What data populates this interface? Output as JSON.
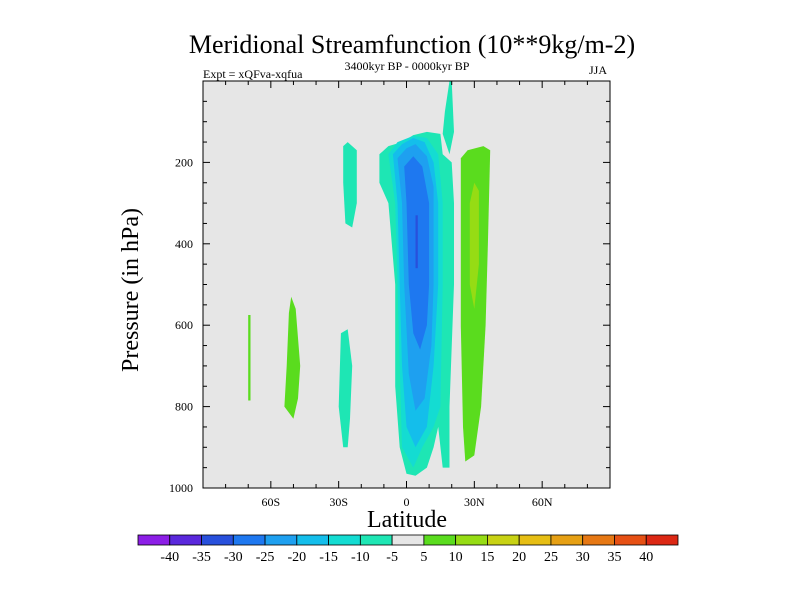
{
  "chart_data": {
    "type": "heatmap",
    "title": "Meridional Streamfunction (10**9kg/m-2)",
    "left_string": "Expt = xQFva-xqfua",
    "center_string": "3400kyr BP - 0000kyr BP",
    "right_string": "JJA",
    "xlabel": "Latitude",
    "ylabel": "Pressure (in hPa)",
    "xlim": [
      -90,
      90
    ],
    "ylim": [
      1000,
      0
    ],
    "x_ticks": [
      -60,
      -30,
      0,
      30,
      60
    ],
    "x_tick_labels": [
      "60S",
      "30S",
      "0",
      "30N",
      "60N"
    ],
    "y_ticks": [
      200,
      400,
      600,
      800,
      1000
    ],
    "y_tick_labels": [
      "200",
      "400",
      "600",
      "800",
      "1000"
    ],
    "colorbar": {
      "levels": [
        -40,
        -35,
        -30,
        -25,
        -20,
        -15,
        -10,
        -5,
        5,
        10,
        15,
        20,
        25,
        30,
        35,
        40
      ],
      "level_labels": [
        "-40",
        "-35",
        "-30",
        "-25",
        "-20",
        "-15",
        "-10",
        "-5",
        "5",
        "10",
        "15",
        "20",
        "25",
        "30",
        "35",
        "40"
      ],
      "colors": [
        "#8c1ee6",
        "#5a28dc",
        "#2850dc",
        "#1e78f0",
        "#1ea0f0",
        "#14beeb",
        "#14dcd2",
        "#1ee6b4",
        "#e6e6e6",
        "#5adc1e",
        "#96dc14",
        "#c8d214",
        "#e6be14",
        "#e6a014",
        "#e67814",
        "#e65014",
        "#dc2814"
      ]
    },
    "background_color": "#e6e6e6",
    "contours": [
      {
        "name": "neg-5-equatorial-cell",
        "value": -5,
        "color": "#1ee6b4",
        "points": [
          [
            -12,
            180
          ],
          [
            -8,
            160
          ],
          [
            -2,
            150
          ],
          [
            3,
            133
          ],
          [
            9,
            125
          ],
          [
            15,
            130
          ],
          [
            16,
            180
          ],
          [
            20,
            200
          ],
          [
            21,
            300
          ],
          [
            21,
            500
          ],
          [
            19,
            800
          ],
          [
            19,
            950
          ],
          [
            16,
            950
          ],
          [
            14,
            850
          ],
          [
            12,
            900
          ],
          [
            9,
            950
          ],
          [
            4,
            970
          ],
          [
            0,
            965
          ],
          [
            -3,
            900
          ],
          [
            -5,
            750
          ],
          [
            -5,
            500
          ],
          [
            -8,
            300
          ],
          [
            -12,
            250
          ]
        ]
      },
      {
        "name": "neg-5-upper-plume",
        "value": -5,
        "color": "#1ee6b4",
        "points": [
          [
            16,
            130
          ],
          [
            17,
            75
          ],
          [
            19,
            0
          ],
          [
            20,
            0
          ],
          [
            21,
            125
          ],
          [
            19,
            180
          ]
        ]
      },
      {
        "name": "neg-10-core",
        "value": -10,
        "color": "#14dcd2",
        "points": [
          [
            -8,
            180
          ],
          [
            -4,
            150
          ],
          [
            3,
            135
          ],
          [
            9,
            140
          ],
          [
            14,
            180
          ],
          [
            16,
            300
          ],
          [
            16,
            500
          ],
          [
            15,
            800
          ],
          [
            12,
            850
          ],
          [
            7,
            900
          ],
          [
            3,
            950
          ],
          [
            -2,
            900
          ],
          [
            -3,
            700
          ],
          [
            -4,
            500
          ],
          [
            -5,
            300
          ]
        ]
      },
      {
        "name": "neg-15-core",
        "value": -15,
        "color": "#14beeb",
        "points": [
          [
            -6,
            180
          ],
          [
            -2,
            155
          ],
          [
            3,
            140
          ],
          [
            8,
            150
          ],
          [
            12,
            200
          ],
          [
            14,
            300
          ],
          [
            14,
            500
          ],
          [
            12,
            700
          ],
          [
            9,
            850
          ],
          [
            4,
            900
          ],
          [
            0,
            850
          ],
          [
            -2,
            700
          ],
          [
            -3,
            500
          ],
          [
            -4,
            300
          ]
        ]
      },
      {
        "name": "neg-20-core",
        "value": -20,
        "color": "#1ea0f0",
        "points": [
          [
            -4,
            190
          ],
          [
            0,
            165
          ],
          [
            4,
            155
          ],
          [
            9,
            185
          ],
          [
            12,
            260
          ],
          [
            12,
            500
          ],
          [
            11,
            650
          ],
          [
            8,
            780
          ],
          [
            4,
            810
          ],
          [
            1,
            720
          ],
          [
            -1,
            500
          ],
          [
            -2,
            300
          ]
        ]
      },
      {
        "name": "neg-25-core",
        "value": -25,
        "color": "#1e78f0",
        "points": [
          [
            -1,
            210
          ],
          [
            3,
            185
          ],
          [
            7,
            210
          ],
          [
            10,
            300
          ],
          [
            10,
            500
          ],
          [
            9,
            600
          ],
          [
            6,
            660
          ],
          [
            3,
            620
          ],
          [
            1,
            500
          ],
          [
            0,
            300
          ]
        ]
      },
      {
        "name": "neg-30-core",
        "value": -30,
        "color": "#2850dc",
        "points": [
          [
            4,
            330
          ],
          [
            5,
            330
          ],
          [
            5,
            460
          ],
          [
            4,
            460
          ]
        ]
      },
      {
        "name": "neg-5-subtropical-upper",
        "value": -5,
        "color": "#1ee6b4",
        "points": [
          [
            -28,
            160
          ],
          [
            -26,
            150
          ],
          [
            -22,
            170
          ],
          [
            -22,
            300
          ],
          [
            -24,
            360
          ],
          [
            -27,
            350
          ],
          [
            -28,
            250
          ]
        ]
      },
      {
        "name": "neg-5-subtropical-lower",
        "value": -5,
        "color": "#1ee6b4",
        "points": [
          [
            -29,
            620
          ],
          [
            -26,
            610
          ],
          [
            -24,
            700
          ],
          [
            -25,
            830
          ],
          [
            -26,
            900
          ],
          [
            -28,
            900
          ],
          [
            -30,
            800
          ]
        ]
      },
      {
        "name": "pos-5-north-cell",
        "value": 5,
        "color": "#5adc1e",
        "points": [
          [
            24,
            190
          ],
          [
            27,
            170
          ],
          [
            34,
            160
          ],
          [
            37,
            170
          ],
          [
            36,
            400
          ],
          [
            35,
            600
          ],
          [
            33,
            800
          ],
          [
            30,
            920
          ],
          [
            26,
            935
          ],
          [
            25,
            850
          ],
          [
            24,
            600
          ],
          [
            24,
            300
          ]
        ]
      },
      {
        "name": "pos-10-north-core",
        "value": 10,
        "color": "#96dc14",
        "points": [
          [
            28,
            300
          ],
          [
            30,
            250
          ],
          [
            32,
            270
          ],
          [
            32,
            450
          ],
          [
            30,
            560
          ],
          [
            28,
            500
          ]
        ]
      },
      {
        "name": "pos-5-south-cell",
        "value": 5,
        "color": "#5adc1e",
        "points": [
          [
            -52,
            570
          ],
          [
            -51,
            530
          ],
          [
            -49,
            560
          ],
          [
            -47,
            700
          ],
          [
            -48,
            780
          ],
          [
            -50,
            830
          ],
          [
            -54,
            800
          ],
          [
            -53,
            700
          ]
        ]
      },
      {
        "name": "pos-5-southern-strip",
        "value": 5,
        "color": "#5adc1e",
        "points": [
          [
            -70,
            575
          ],
          [
            -69,
            575
          ],
          [
            -69,
            785
          ],
          [
            -70,
            785
          ]
        ]
      }
    ]
  }
}
